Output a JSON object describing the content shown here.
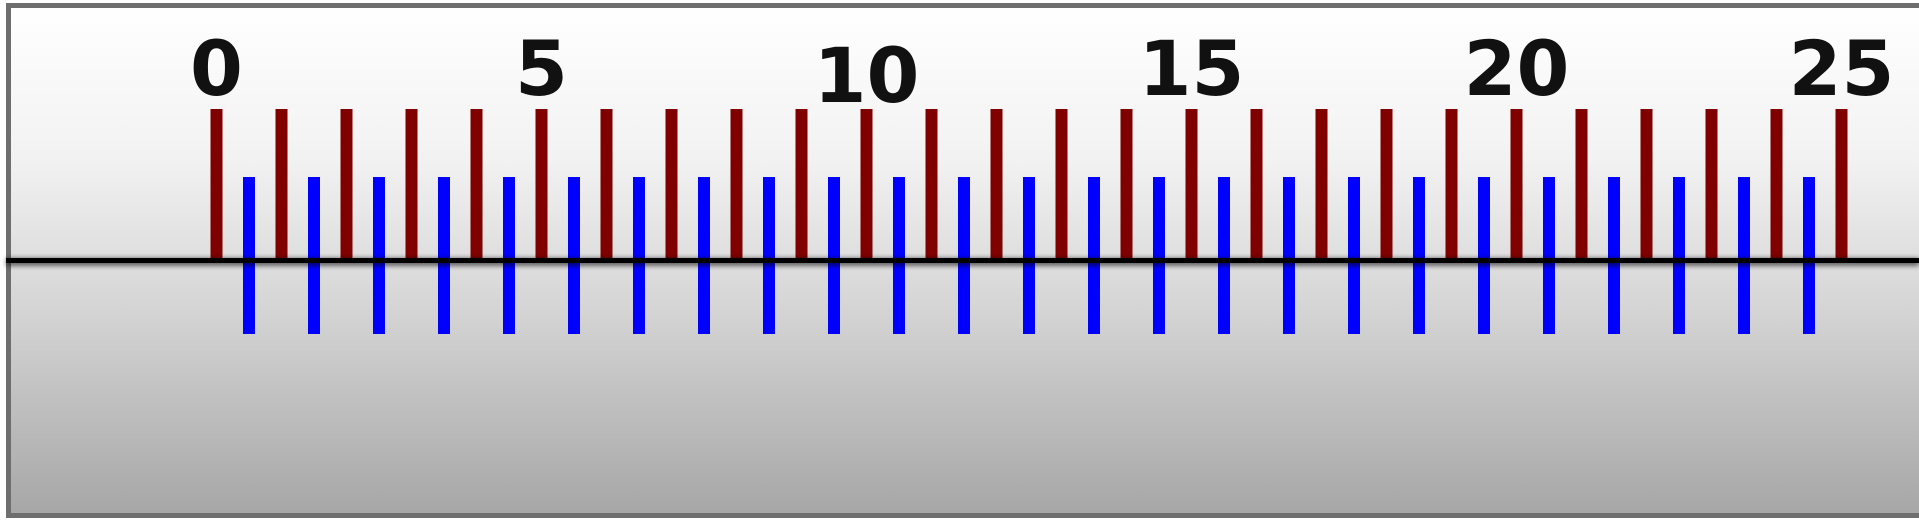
{
  "ruler": {
    "labels": [
      "0",
      "5",
      "10",
      "15",
      "20",
      "25"
    ],
    "labeled_values": [
      0,
      5,
      10,
      15,
      20,
      25
    ],
    "scale_min": 0,
    "scale_max": 25,
    "upper_ticks": {
      "color": "#800000",
      "values": [
        0,
        1,
        2,
        3,
        4,
        5,
        6,
        7,
        8,
        9,
        10,
        11,
        12,
        13,
        14,
        15,
        16,
        17,
        18,
        19,
        20,
        21,
        22,
        23,
        24,
        25
      ]
    },
    "lower_ticks": {
      "color": "#0000ff",
      "values": [
        0.5,
        1.5,
        2.5,
        3.5,
        4.5,
        5.5,
        6.5,
        7.5,
        8.5,
        9.5,
        10.5,
        11.5,
        12.5,
        13.5,
        14.5,
        15.5,
        16.5,
        17.5,
        18.5,
        19.5,
        20.5,
        21.5,
        22.5,
        23.5,
        24.5
      ]
    },
    "baseline_color": "#000000",
    "background_gradient": [
      "#ffffff",
      "#f2f2f2",
      "#d2d2d2",
      "#a6a6a6"
    ],
    "frame_color": "#6e6e6e"
  }
}
